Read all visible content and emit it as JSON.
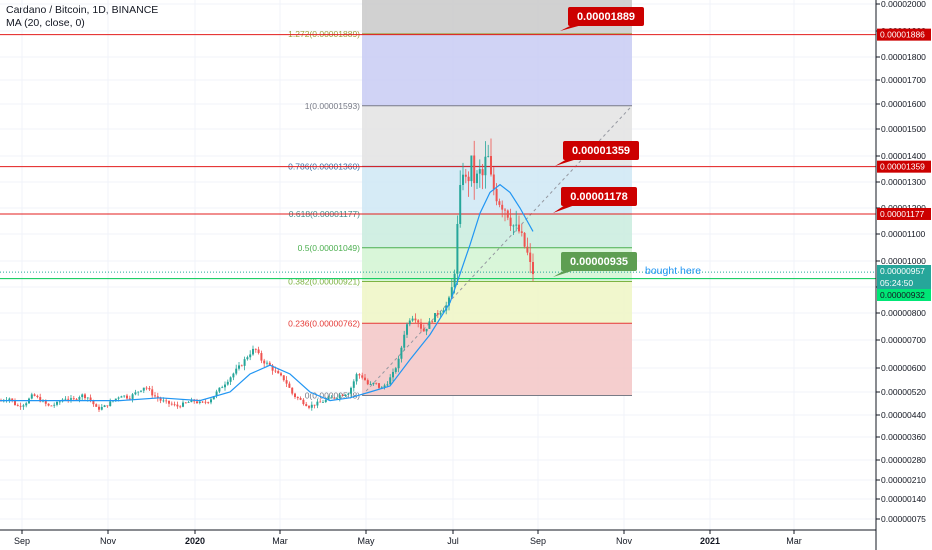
{
  "legend": {
    "title": "Cardano / Bitcoin, 1D, BINANCE",
    "indicator": "MA (20, close, 0)"
  },
  "colors": {
    "up": "#26a69a",
    "down": "#ef5350",
    "ma": "#2196f3",
    "hline": "#e31c1c",
    "callout_red": "#cc0000",
    "callout_green": "#5e9e52",
    "axis_text": "#131722"
  },
  "chart_data": {
    "type": "candlestick",
    "symbol": "Cardano / Bitcoin",
    "timeframe": "1D",
    "exchange": "BINANCE",
    "x_ticks": [
      "Sep",
      "Nov",
      "2020",
      "Mar",
      "May",
      "Jul",
      "Sep",
      "Nov",
      "2021",
      "Mar"
    ],
    "y_scale": "log",
    "y_ticks": [
      "0.00002000",
      "0.00001900",
      "0.00001800",
      "0.00001700",
      "0.00001600",
      "0.00001500",
      "0.00001400",
      "0.00001300",
      "0.00001200",
      "0.00001100",
      "0.00001000",
      "0.00000900",
      "0.00000800",
      "0.00000700",
      "0.00000600",
      "0.00000520",
      "0.00000440",
      "0.00000360",
      "0.00000280",
      "0.00000210",
      "0.00000140",
      "0.00000075"
    ],
    "fib_levels": [
      {
        "label": "0(0.00000508)",
        "value": 5.08e-06,
        "color": "#787b86",
        "fill": "#f3c6c6"
      },
      {
        "label": "0.236(0.00000762)",
        "value": 7.62e-06,
        "color": "#e53935",
        "fill": "#eef6c4"
      },
      {
        "label": "0.382(0.00000921)",
        "value": 9.21e-06,
        "color": "#7cb342",
        "fill": "#d2f5d2"
      },
      {
        "label": "0.5(0.00001049)",
        "value": 1.049e-05,
        "color": "#4caf50",
        "fill": "#c9ecde"
      },
      {
        "label": "0.618(0.00001177)",
        "value": 1.177e-05,
        "color": "#3d8a8a",
        "fill": "#cfe7f4"
      },
      {
        "label": "0.786(0.00001360)",
        "value": 1.36e-05,
        "color": "#3a6fa6",
        "fill": "#e3e3e3"
      },
      {
        "label": "1(0.00001593)",
        "value": 1.593e-05,
        "color": "#787b86",
        "fill": "#c8cbf3"
      },
      {
        "label": "1.272(0.00001889)",
        "value": 1.889e-05,
        "color": "#9c9d3a",
        "fill": "#c9c9c9"
      }
    ],
    "horizontal_lines": [
      {
        "value": 1.886e-05,
        "label": "0.00001886"
      },
      {
        "value": 1.359e-05,
        "label": "0.00001359"
      },
      {
        "value": 1.177e-05,
        "label": "0.00001177"
      }
    ],
    "callouts": [
      {
        "text": "0.00001889",
        "style": "red"
      },
      {
        "text": "0.00001359",
        "style": "red"
      },
      {
        "text": "0.00001178",
        "style": "red"
      },
      {
        "text": "0.00000935",
        "style": "green"
      }
    ],
    "annotation": "bought here",
    "price_labels": [
      {
        "text": "0.00000957",
        "bg": "#26a69a"
      },
      {
        "text": "05:24:50",
        "bg": "#26a69a"
      },
      {
        "text": "0.00000932",
        "bg": "#00e676"
      }
    ],
    "price_path": [
      [
        0,
        4.9e-06
      ],
      [
        8,
        5e-06
      ],
      [
        16,
        4.7e-06
      ],
      [
        24,
        4.8e-06
      ],
      [
        32,
        5.1e-06
      ],
      [
        40,
        4.9e-06
      ],
      [
        48,
        4.7e-06
      ],
      [
        56,
        4.8e-06
      ],
      [
        64,
        5e-06
      ],
      [
        72,
        4.9e-06
      ],
      [
        80,
        5.1e-06
      ],
      [
        88,
        5e-06
      ],
      [
        96,
        4.6e-06
      ],
      [
        104,
        4.7e-06
      ],
      [
        112,
        4.9e-06
      ],
      [
        120,
        5.1e-06
      ],
      [
        128,
        5e-06
      ],
      [
        136,
        5.2e-06
      ],
      [
        144,
        5.4e-06
      ],
      [
        152,
        5.1e-06
      ],
      [
        160,
        4.9e-06
      ],
      [
        168,
        4.8e-06
      ],
      [
        176,
        4.7e-06
      ],
      [
        184,
        4.8e-06
      ],
      [
        192,
        4.9e-06
      ],
      [
        200,
        4.8e-06
      ],
      [
        208,
        4.9e-06
      ],
      [
        216,
        5.2e-06
      ],
      [
        224,
        5.5e-06
      ],
      [
        232,
        5.8e-06
      ],
      [
        240,
        6.1e-06
      ],
      [
        248,
        6.5e-06
      ],
      [
        254,
        6.7e-06
      ],
      [
        260,
        6.3e-06
      ],
      [
        268,
        6.1e-06
      ],
      [
        276,
        5.8e-06
      ],
      [
        284,
        5.6e-06
      ],
      [
        292,
        5.1e-06
      ],
      [
        300,
        4.9e-06
      ],
      [
        308,
        4.7e-06
      ],
      [
        316,
        4.8e-06
      ],
      [
        324,
        4.9e-06
      ],
      [
        332,
        5e-06
      ],
      [
        340,
        5.1e-06
      ],
      [
        348,
        5.2e-06
      ],
      [
        356,
        5.8e-06
      ],
      [
        362,
        5.7e-06
      ],
      [
        368,
        5.4e-06
      ],
      [
        374,
        5.5e-06
      ],
      [
        380,
        5.3e-06
      ],
      [
        386,
        5.5e-06
      ],
      [
        392,
        5.8e-06
      ],
      [
        398,
        6.3e-06
      ],
      [
        404,
        7.4e-06
      ],
      [
        410,
        7.9e-06
      ],
      [
        416,
        7.8e-06
      ],
      [
        422,
        7.3e-06
      ],
      [
        428,
        7.6e-06
      ],
      [
        434,
        7.9e-06
      ],
      [
        440,
        8.1e-06
      ],
      [
        446,
        8.3e-06
      ],
      [
        450,
        8.7e-06
      ],
      [
        454,
        9.8e-06
      ],
      [
        458,
        1.22e-05
      ],
      [
        462,
        1.35e-05
      ],
      [
        466,
        1.28e-05
      ],
      [
        470,
        1.38e-05
      ],
      [
        474,
        1.29e-05
      ],
      [
        478,
        1.34e-05
      ],
      [
        482,
        1.32e-05
      ],
      [
        486,
        1.42e-05
      ],
      [
        490,
        1.31e-05
      ],
      [
        494,
        1.26e-05
      ],
      [
        498,
        1.23e-05
      ],
      [
        502,
        1.21e-05
      ],
      [
        506,
        1.19e-05
      ],
      [
        510,
        1.15e-05
      ],
      [
        514,
        1.12e-05
      ],
      [
        518,
        1.11e-05
      ],
      [
        522,
        1.07e-05
      ],
      [
        526,
        1.03e-05
      ],
      [
        530,
        9.7e-06
      ],
      [
        533,
        9.5e-06
      ]
    ],
    "ma_path": [
      [
        0,
        4.9e-06
      ],
      [
        40,
        4.9e-06
      ],
      [
        80,
        4.9e-06
      ],
      [
        120,
        4.9e-06
      ],
      [
        160,
        5e-06
      ],
      [
        200,
        4.9e-06
      ],
      [
        230,
        5.2e-06
      ],
      [
        250,
        5.8e-06
      ],
      [
        270,
        6.1e-06
      ],
      [
        290,
        5.8e-06
      ],
      [
        310,
        5.2e-06
      ],
      [
        330,
        4.9e-06
      ],
      [
        350,
        5e-06
      ],
      [
        370,
        5.2e-06
      ],
      [
        390,
        5.4e-06
      ],
      [
        410,
        6.3e-06
      ],
      [
        430,
        7.2e-06
      ],
      [
        450,
        8.4e-06
      ],
      [
        460,
        9.5e-06
      ],
      [
        470,
        1.06e-05
      ],
      [
        480,
        1.18e-05
      ],
      [
        490,
        1.26e-05
      ],
      [
        500,
        1.29e-05
      ],
      [
        510,
        1.26e-05
      ],
      [
        520,
        1.2e-05
      ],
      [
        533,
        1.11e-05
      ]
    ]
  }
}
